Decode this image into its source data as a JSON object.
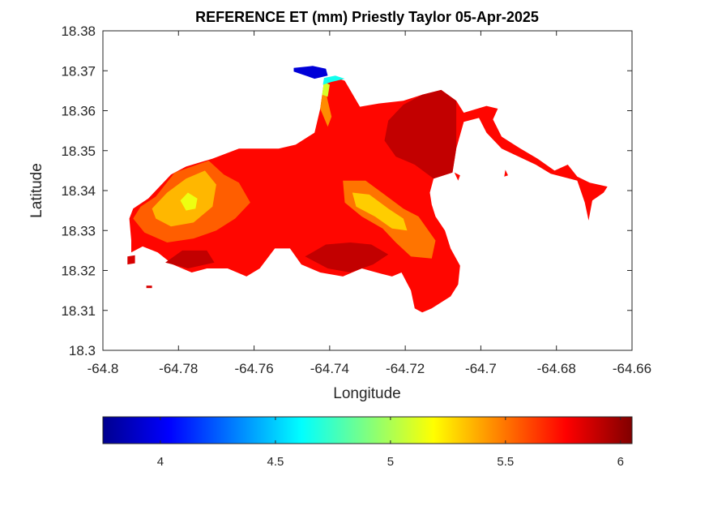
{
  "chart_data": {
    "type": "heatmap",
    "title": "REFERENCE ET (mm) Priestly Taylor 05-Apr-2025",
    "xlabel": "Longitude",
    "ylabel": "Latitude",
    "xlim": [
      -64.8,
      -64.66
    ],
    "ylim": [
      18.3,
      18.38
    ],
    "xticks": [
      -64.8,
      -64.78,
      -64.76,
      -64.74,
      -64.72,
      -64.7,
      -64.68,
      -64.66
    ],
    "yticks": [
      18.3,
      18.31,
      18.32,
      18.33,
      18.34,
      18.35,
      18.36,
      18.37,
      18.38
    ],
    "xtick_labels": [
      "-64.8",
      "-64.78",
      "-64.76",
      "-64.74",
      "-64.72",
      "-64.7",
      "-64.68",
      "-64.66"
    ],
    "ytick_labels": [
      "18.3",
      "18.31",
      "18.32",
      "18.33",
      "18.34",
      "18.35",
      "18.36",
      "18.37",
      "18.38"
    ],
    "colormap": "jet",
    "colorbar": {
      "location": "bottom",
      "range": [
        3.75,
        6.05
      ],
      "ticks": [
        4,
        4.5,
        5,
        5.5,
        6
      ],
      "tick_labels": [
        "4",
        "4.5",
        "5",
        "5.5",
        "6"
      ]
    },
    "grid": false,
    "regions": [
      {
        "name": "island",
        "value": 5.75,
        "polygon": [
          [
            -64.792,
            18.3355
          ],
          [
            -64.788,
            18.338
          ],
          [
            -64.782,
            18.344
          ],
          [
            -64.778,
            18.346
          ],
          [
            -64.771,
            18.348
          ],
          [
            -64.764,
            18.3505
          ],
          [
            -64.7535,
            18.3505
          ],
          [
            -64.749,
            18.3515
          ],
          [
            -64.744,
            18.3545
          ],
          [
            -64.7425,
            18.3605
          ],
          [
            -64.7415,
            18.3672
          ],
          [
            -64.739,
            18.3685
          ],
          [
            -64.736,
            18.3675
          ],
          [
            -64.732,
            18.361
          ],
          [
            -64.727,
            18.3618
          ],
          [
            -64.7205,
            18.3625
          ],
          [
            -64.7155,
            18.364
          ],
          [
            -64.7105,
            18.3652
          ],
          [
            -64.7065,
            18.3625
          ],
          [
            -64.7045,
            18.3595
          ],
          [
            -64.6985,
            18.3612
          ],
          [
            -64.6955,
            18.3605
          ],
          [
            -64.6968,
            18.3578
          ],
          [
            -64.6945,
            18.3535
          ],
          [
            -64.6895,
            18.3505
          ],
          [
            -64.685,
            18.348
          ],
          [
            -64.6805,
            18.345
          ],
          [
            -64.677,
            18.3465
          ],
          [
            -64.6745,
            18.3435
          ],
          [
            -64.6712,
            18.342
          ],
          [
            -64.6665,
            18.341
          ],
          [
            -64.6675,
            18.3395
          ],
          [
            -64.6705,
            18.3375
          ],
          [
            -64.6715,
            18.3325
          ],
          [
            -64.6725,
            18.337
          ],
          [
            -64.6745,
            18.3425
          ],
          [
            -64.6815,
            18.3442
          ],
          [
            -64.6855,
            18.3465
          ],
          [
            -64.6945,
            18.3505
          ],
          [
            -64.6985,
            18.3545
          ],
          [
            -64.7005,
            18.3582
          ],
          [
            -64.7045,
            18.3572
          ],
          [
            -64.7065,
            18.3505
          ],
          [
            -64.7075,
            18.3445
          ],
          [
            -64.7125,
            18.343
          ],
          [
            -64.7135,
            18.3395
          ],
          [
            -64.713,
            18.3365
          ],
          [
            -64.712,
            18.3335
          ],
          [
            -64.7095,
            18.33
          ],
          [
            -64.708,
            18.3255
          ],
          [
            -64.7055,
            18.3212
          ],
          [
            -64.706,
            18.3165
          ],
          [
            -64.708,
            18.3135
          ],
          [
            -64.713,
            18.3105
          ],
          [
            -64.7155,
            18.3095
          ],
          [
            -64.7175,
            18.3105
          ],
          [
            -64.7185,
            18.315
          ],
          [
            -64.721,
            18.3195
          ],
          [
            -64.7235,
            18.3185
          ],
          [
            -64.7265,
            18.3192
          ],
          [
            -64.7315,
            18.3205
          ],
          [
            -64.7365,
            18.3185
          ],
          [
            -64.7425,
            18.3195
          ],
          [
            -64.7475,
            18.3215
          ],
          [
            -64.7505,
            18.3255
          ],
          [
            -64.7545,
            18.3255
          ],
          [
            -64.7585,
            18.3205
          ],
          [
            -64.762,
            18.3185
          ],
          [
            -64.767,
            18.3205
          ],
          [
            -64.7725,
            18.3205
          ],
          [
            -64.7765,
            18.3195
          ],
          [
            -64.7815,
            18.3215
          ],
          [
            -64.7855,
            18.3245
          ],
          [
            -64.7895,
            18.326
          ],
          [
            -64.7925,
            18.3245
          ],
          [
            -64.7925,
            18.3275
          ],
          [
            -64.793,
            18.333
          ]
        ]
      },
      {
        "name": "west-orange",
        "value": 5.55,
        "polygon": [
          [
            -64.79,
            18.336
          ],
          [
            -64.786,
            18.3385
          ],
          [
            -64.781,
            18.3445
          ],
          [
            -64.772,
            18.3475
          ],
          [
            -64.768,
            18.344
          ],
          [
            -64.764,
            18.342
          ],
          [
            -64.761,
            18.337
          ],
          [
            -64.765,
            18.333
          ],
          [
            -64.77,
            18.33
          ],
          [
            -64.776,
            18.328
          ],
          [
            -64.783,
            18.327
          ],
          [
            -64.789,
            18.3295
          ],
          [
            -64.792,
            18.333
          ]
        ]
      },
      {
        "name": "west-light",
        "value": 5.35,
        "polygon": [
          [
            -64.787,
            18.3355
          ],
          [
            -64.783,
            18.3395
          ],
          [
            -64.778,
            18.343
          ],
          [
            -64.773,
            18.345
          ],
          [
            -64.77,
            18.3415
          ],
          [
            -64.771,
            18.336
          ],
          [
            -64.776,
            18.332
          ],
          [
            -64.782,
            18.331
          ],
          [
            -64.786,
            18.333
          ]
        ]
      },
      {
        "name": "west-yellow",
        "value": 5.15,
        "polygon": [
          [
            -64.7795,
            18.3375
          ],
          [
            -64.7775,
            18.3395
          ],
          [
            -64.775,
            18.338
          ],
          [
            -64.7755,
            18.3355
          ],
          [
            -64.778,
            18.335
          ]
        ]
      },
      {
        "name": "center-orange",
        "value": 5.5,
        "polygon": [
          [
            -64.7365,
            18.3425
          ],
          [
            -64.7305,
            18.3425
          ],
          [
            -64.7255,
            18.339
          ],
          [
            -64.7205,
            18.3355
          ],
          [
            -64.7165,
            18.3335
          ],
          [
            -64.712,
            18.3275
          ],
          [
            -64.713,
            18.323
          ],
          [
            -64.7185,
            18.3235
          ],
          [
            -64.7225,
            18.327
          ],
          [
            -64.726,
            18.3305
          ],
          [
            -64.7315,
            18.3335
          ],
          [
            -64.736,
            18.337
          ]
        ]
      },
      {
        "name": "center-light",
        "value": 5.3,
        "polygon": [
          [
            -64.734,
            18.3395
          ],
          [
            -64.7295,
            18.339
          ],
          [
            -64.7245,
            18.3355
          ],
          [
            -64.7205,
            18.333
          ],
          [
            -64.7195,
            18.33
          ],
          [
            -64.7235,
            18.3305
          ],
          [
            -64.728,
            18.3335
          ],
          [
            -64.733,
            18.336
          ]
        ]
      },
      {
        "name": "northeast-dark",
        "value": 5.9,
        "polygon": [
          [
            -64.7205,
            18.3615
          ],
          [
            -64.7155,
            18.364
          ],
          [
            -64.7105,
            18.3652
          ],
          [
            -64.7065,
            18.3625
          ],
          [
            -64.7065,
            18.3505
          ],
          [
            -64.7075,
            18.3445
          ],
          [
            -64.7125,
            18.343
          ],
          [
            -64.7175,
            18.3465
          ],
          [
            -64.7225,
            18.3485
          ],
          [
            -64.7255,
            18.3525
          ],
          [
            -64.7245,
            18.3575
          ]
        ]
      },
      {
        "name": "south-dark",
        "value": 5.9,
        "polygon": [
          [
            -64.7465,
            18.3235
          ],
          [
            -64.7405,
            18.3205
          ],
          [
            -64.7345,
            18.3195
          ],
          [
            -64.7285,
            18.3215
          ],
          [
            -64.7245,
            18.324
          ],
          [
            -64.729,
            18.3265
          ],
          [
            -64.7345,
            18.327
          ],
          [
            -64.741,
            18.3265
          ]
        ]
      },
      {
        "name": "southwest-dark",
        "value": 5.9,
        "polygon": [
          [
            -64.7835,
            18.322
          ],
          [
            -64.7775,
            18.3205
          ],
          [
            -64.7705,
            18.322
          ],
          [
            -64.7725,
            18.325
          ],
          [
            -64.779,
            18.325
          ]
        ]
      },
      {
        "name": "north-peninsula-orange",
        "value": 5.45,
        "polygon": [
          [
            -64.7415,
            18.3672
          ],
          [
            -64.7405,
            18.3625
          ],
          [
            -64.7395,
            18.3585
          ],
          [
            -64.7405,
            18.356
          ],
          [
            -64.7425,
            18.3605
          ]
        ]
      },
      {
        "name": "north-peninsula-yellow",
        "value": 5.1,
        "polygon": [
          [
            -64.7415,
            18.3672
          ],
          [
            -64.74,
            18.3665
          ],
          [
            -64.7405,
            18.3635
          ],
          [
            -64.742,
            18.364
          ]
        ]
      },
      {
        "name": "north-tip-cyan",
        "value": 4.65,
        "polygon": [
          [
            -64.7415,
            18.3682
          ],
          [
            -64.7385,
            18.3688
          ],
          [
            -64.736,
            18.368
          ],
          [
            -64.7395,
            18.3672
          ],
          [
            -64.7418,
            18.3665
          ]
        ]
      },
      {
        "name": "north-tip-blue",
        "value": 3.95,
        "polygon": [
          [
            -64.7495,
            18.3707
          ],
          [
            -64.7445,
            18.3712
          ],
          [
            -64.741,
            18.3705
          ],
          [
            -64.7405,
            18.3688
          ],
          [
            -64.744,
            18.368
          ],
          [
            -64.747,
            18.369
          ],
          [
            -64.7495,
            18.3698
          ]
        ]
      },
      {
        "name": "islet-1",
        "value": 5.85,
        "polygon": [
          [
            -64.7935,
            18.3235
          ],
          [
            -64.7915,
            18.3238
          ],
          [
            -64.7915,
            18.3218
          ],
          [
            -64.7935,
            18.3215
          ]
        ]
      },
      {
        "name": "islet-2",
        "value": 5.85,
        "polygon": [
          [
            -64.7885,
            18.3162
          ],
          [
            -64.787,
            18.3162
          ],
          [
            -64.787,
            18.3156
          ],
          [
            -64.7885,
            18.3156
          ]
        ]
      },
      {
        "name": "islet-3",
        "value": 5.75,
        "polygon": [
          [
            -64.707,
            18.3445
          ],
          [
            -64.706,
            18.3425
          ],
          [
            -64.7055,
            18.3438
          ]
        ]
      },
      {
        "name": "islet-4",
        "value": 5.75,
        "polygon": [
          [
            -64.6935,
            18.3452
          ],
          [
            -64.6928,
            18.3438
          ],
          [
            -64.6938,
            18.3435
          ]
        ]
      }
    ]
  }
}
